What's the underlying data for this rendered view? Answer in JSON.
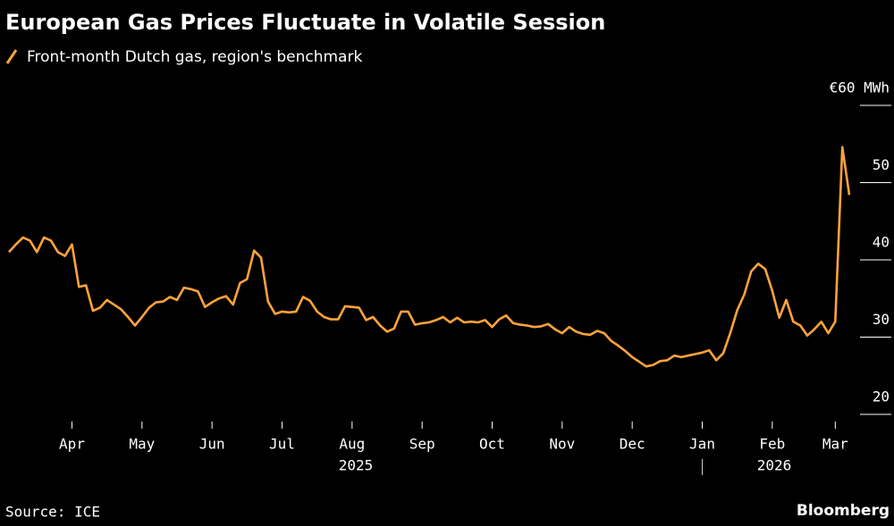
{
  "chart_data": {
    "type": "line",
    "title": "European Gas Prices Fluctuate in Volatile Session",
    "source": "Source: ICE",
    "brand": "Bloomberg",
    "years": [
      "2025",
      "2026"
    ],
    "categories": [
      null,
      null,
      null,
      null,
      null,
      null,
      null,
      null,
      null,
      "Apr",
      null,
      null,
      null,
      null,
      null,
      null,
      null,
      null,
      null,
      "May",
      null,
      null,
      null,
      null,
      null,
      null,
      null,
      null,
      null,
      "Jun",
      null,
      null,
      null,
      null,
      null,
      null,
      null,
      null,
      null,
      "Jul",
      null,
      null,
      null,
      null,
      null,
      null,
      null,
      null,
      null,
      "Aug",
      null,
      null,
      null,
      null,
      null,
      null,
      null,
      null,
      null,
      "Sep",
      null,
      null,
      null,
      null,
      null,
      null,
      null,
      null,
      null,
      "Oct",
      null,
      null,
      null,
      null,
      null,
      null,
      null,
      null,
      null,
      "Nov",
      null,
      null,
      null,
      null,
      null,
      null,
      null,
      null,
      null,
      "Dec",
      null,
      null,
      null,
      null,
      null,
      null,
      null,
      null,
      null,
      "Jan",
      null,
      null,
      null,
      null,
      null,
      null,
      null,
      null,
      null,
      "Feb",
      null,
      null,
      null,
      null,
      null,
      null,
      null,
      null,
      "Mar",
      null,
      null
    ],
    "series": [
      {
        "name": "Front-month Dutch gas, region's benchmark",
        "color": "#ffa33c",
        "values": [
          41.0,
          42.0,
          42.9,
          42.5,
          41.0,
          42.9,
          42.5,
          41.0,
          40.5,
          42.0,
          36.5,
          36.7,
          33.4,
          33.8,
          34.8,
          34.2,
          33.6,
          32.6,
          31.5,
          32.6,
          33.8,
          34.5,
          34.6,
          35.2,
          34.8,
          36.4,
          36.2,
          35.9,
          33.9,
          34.5,
          35.0,
          35.3,
          34.2,
          37.0,
          37.5,
          41.2,
          40.3,
          34.6,
          33.0,
          33.3,
          33.2,
          33.3,
          35.2,
          34.7,
          33.3,
          32.6,
          32.3,
          32.3,
          34.0,
          33.9,
          33.8,
          32.2,
          32.6,
          31.5,
          30.7,
          31.1,
          33.3,
          33.3,
          31.6,
          31.8,
          31.9,
          32.2,
          32.6,
          31.9,
          32.5,
          31.9,
          32.0,
          31.9,
          32.2,
          31.3,
          32.3,
          32.8,
          31.8,
          31.6,
          31.5,
          31.3,
          31.4,
          31.7,
          31.0,
          30.5,
          31.3,
          30.7,
          30.4,
          30.3,
          30.8,
          30.5,
          29.5,
          28.9,
          28.2,
          27.4,
          26.8,
          26.2,
          26.4,
          26.9,
          27.0,
          27.6,
          27.4,
          27.6,
          27.8,
          28.0,
          28.3,
          27.0,
          27.9,
          30.5,
          33.5,
          35.5,
          38.5,
          39.5,
          38.8,
          36.0,
          32.5,
          34.8,
          32.0,
          31.5,
          30.2,
          31.0,
          32.0,
          30.5,
          32.0,
          54.6,
          48.4
        ]
      }
    ],
    "ylim": [
      19.3,
      60
    ],
    "yticks": [
      {
        "value": 60,
        "label": "€60 MWh"
      },
      50,
      40,
      30,
      20
    ]
  }
}
